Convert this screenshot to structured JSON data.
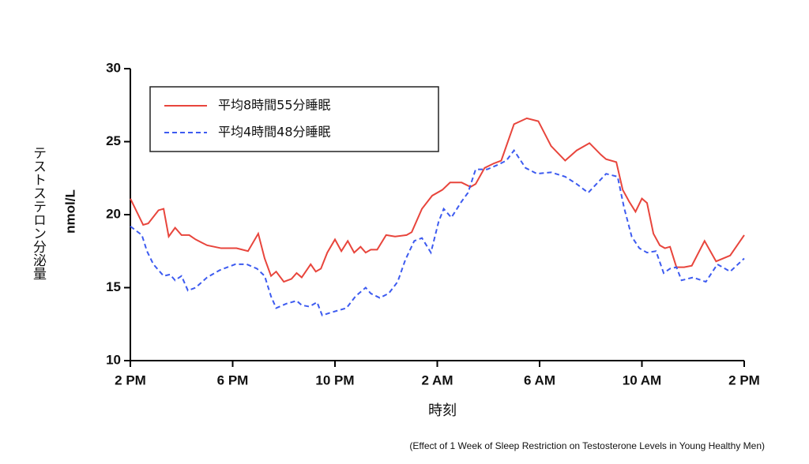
{
  "chart_data": {
    "type": "line",
    "y_label": "テストステロン分泌量",
    "y_unit": "nmol/L",
    "x_label": "時刻",
    "source": "(Effect of 1 Week of Sleep Restriction on Testosterone Levels in Young Healthy Men)",
    "xlim": [
      0,
      24
    ],
    "xticks": [
      {
        "value": 0,
        "label": "2 PM"
      },
      {
        "value": 4,
        "label": "6 PM"
      },
      {
        "value": 8,
        "label": "10 PM"
      },
      {
        "value": 12,
        "label": "2 AM"
      },
      {
        "value": 16,
        "label": "6 AM"
      },
      {
        "value": 20,
        "label": "10 AM"
      },
      {
        "value": 24,
        "label": "2 PM"
      }
    ],
    "ylim": [
      10,
      30
    ],
    "yticks": [
      10,
      15,
      20,
      25,
      30
    ],
    "grid": false,
    "legend": "upper left",
    "series": [
      {
        "name": "平均8時間55分睡眠",
        "color": "#e8453c",
        "dash": false,
        "x": [
          0,
          0.5,
          0.7,
          1.1,
          1.3,
          1.5,
          1.75,
          2.0,
          2.3,
          2.55,
          3.0,
          3.55,
          4.15,
          4.6,
          5.0,
          5.25,
          5.5,
          5.7,
          6.0,
          6.3,
          6.5,
          6.7,
          7.05,
          7.25,
          7.45,
          7.7,
          8.0,
          8.25,
          8.5,
          8.75,
          9.0,
          9.2,
          9.4,
          9.65,
          10.0,
          10.35,
          10.8,
          11.0,
          11.4,
          11.8,
          12.2,
          12.5,
          12.95,
          13.3,
          13.5,
          13.85,
          14.2,
          14.5,
          15.0,
          15.5,
          15.95,
          16.45,
          17.0,
          17.45,
          17.95,
          18.4,
          18.6,
          19.0,
          19.25,
          19.5,
          19.75,
          20.0,
          20.2,
          20.45,
          20.7,
          20.9,
          21.1,
          21.35,
          21.65,
          21.95,
          22.45,
          22.9,
          23.45,
          24.0
        ],
        "values": [
          21.1,
          19.3,
          19.4,
          20.3,
          20.4,
          18.5,
          19.1,
          18.6,
          18.6,
          18.3,
          17.9,
          17.7,
          17.7,
          17.5,
          18.7,
          17.0,
          15.8,
          16.1,
          15.4,
          15.6,
          16.0,
          15.7,
          16.6,
          16.1,
          16.3,
          17.4,
          18.3,
          17.5,
          18.2,
          17.4,
          17.8,
          17.4,
          17.6,
          17.6,
          18.6,
          18.5,
          18.6,
          18.8,
          20.4,
          21.3,
          21.7,
          22.2,
          22.2,
          21.9,
          22.1,
          23.2,
          23.5,
          23.7,
          26.2,
          26.6,
          26.4,
          24.7,
          23.7,
          24.4,
          24.9,
          24.1,
          23.8,
          23.6,
          21.7,
          20.9,
          20.2,
          21.1,
          20.8,
          18.7,
          17.9,
          17.7,
          17.8,
          16.4,
          16.4,
          16.5,
          18.2,
          16.8,
          17.2,
          18.6
        ]
      },
      {
        "name": "平均4時間48分睡眠",
        "color": "#3d5bf0",
        "dash": true,
        "x": [
          0,
          0.45,
          0.65,
          0.9,
          1.3,
          1.55,
          1.75,
          2.0,
          2.25,
          2.55,
          3.0,
          3.5,
          4.1,
          4.55,
          4.95,
          5.25,
          5.5,
          5.7,
          6.1,
          6.5,
          6.7,
          7.0,
          7.3,
          7.5,
          7.85,
          8.45,
          8.8,
          9.2,
          9.4,
          9.75,
          10.1,
          10.45,
          10.75,
          11.1,
          11.4,
          11.75,
          12.05,
          12.25,
          12.55,
          12.95,
          13.2,
          13.5,
          13.95,
          14.35,
          14.7,
          15.0,
          15.45,
          15.9,
          16.45,
          17.0,
          17.45,
          17.9,
          18.6,
          19.05,
          19.3,
          19.6,
          19.9,
          20.2,
          20.55,
          20.85,
          21.1,
          21.35,
          21.55,
          22.0,
          22.5,
          22.95,
          23.45,
          24.0
        ],
        "values": [
          19.2,
          18.6,
          17.5,
          16.6,
          15.8,
          15.9,
          15.5,
          15.8,
          14.8,
          15.0,
          15.7,
          16.2,
          16.6,
          16.6,
          16.3,
          15.8,
          14.4,
          13.6,
          13.9,
          14.1,
          13.8,
          13.7,
          14.0,
          13.1,
          13.3,
          13.6,
          14.4,
          15.0,
          14.6,
          14.3,
          14.6,
          15.4,
          16.9,
          18.2,
          18.4,
          17.4,
          19.5,
          20.4,
          19.8,
          20.9,
          21.5,
          23.1,
          23.1,
          23.4,
          23.7,
          24.4,
          23.2,
          22.8,
          22.9,
          22.6,
          22.1,
          21.5,
          22.8,
          22.6,
          20.5,
          18.5,
          17.7,
          17.4,
          17.5,
          16.0,
          16.3,
          16.4,
          15.5,
          15.7,
          15.4,
          16.6,
          16.1,
          17.0
        ]
      }
    ]
  }
}
